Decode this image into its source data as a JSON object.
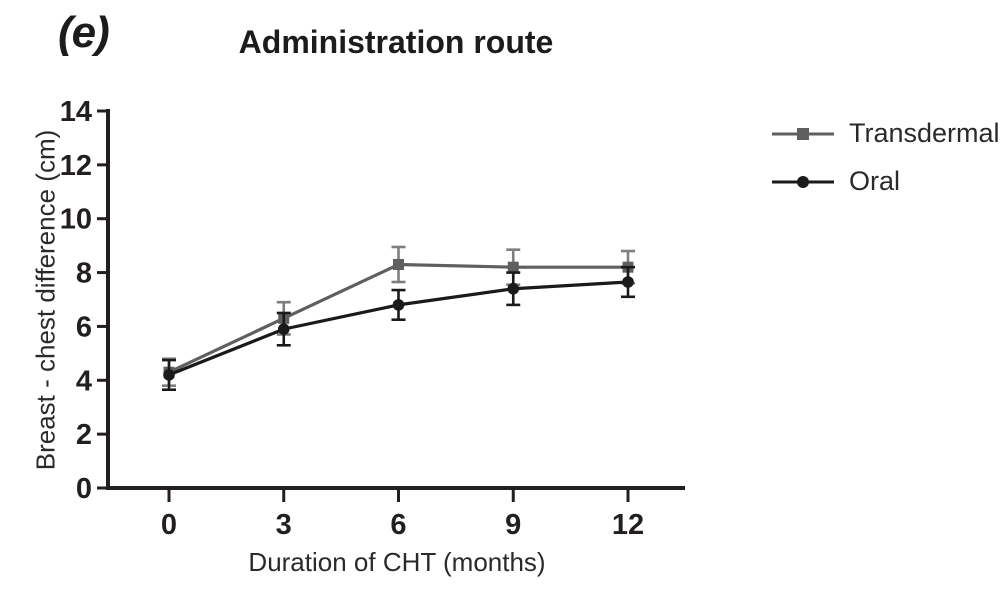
{
  "figure": {
    "panel_label": "(e)"
  },
  "colors": {
    "background": "#ffffff",
    "axis": "#231f20",
    "transdermal": "#5f5f5f",
    "oral": "#1a1a1a"
  },
  "chart_data": {
    "type": "line",
    "title": "Administration route",
    "xlabel": "Duration of CHT (months)",
    "ylabel": "Breast - chest difference (cm)",
    "x": [
      0,
      3,
      6,
      9,
      12
    ],
    "xticks": [
      0,
      3,
      6,
      9,
      12
    ],
    "yticks": [
      0,
      2,
      4,
      6,
      8,
      10,
      12,
      14
    ],
    "xlim": [
      -1.6,
      13.5
    ],
    "ylim": [
      0,
      14
    ],
    "grid": false,
    "legend_position": "right",
    "error_bars": true,
    "series": [
      {
        "name": "Transdermal",
        "marker": "square",
        "color": "#5f5f5f",
        "error_color": "#7e7e7e",
        "values": [
          4.3,
          6.3,
          8.3,
          8.2,
          8.2
        ],
        "errors": [
          0.5,
          0.6,
          0.65,
          0.65,
          0.6
        ]
      },
      {
        "name": "Oral",
        "marker": "circle",
        "color": "#1a1a1a",
        "error_color": "#1a1a1a",
        "values": [
          4.2,
          5.9,
          6.8,
          7.4,
          7.65
        ],
        "errors": [
          0.55,
          0.6,
          0.55,
          0.6,
          0.55
        ]
      }
    ]
  }
}
